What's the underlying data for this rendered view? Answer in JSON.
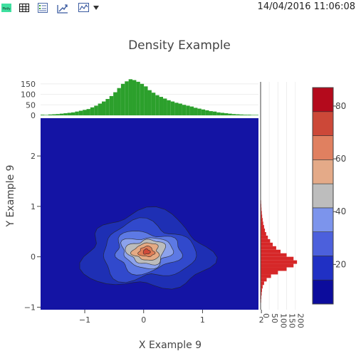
{
  "toolbar": {
    "logo_text": "Plotly",
    "icons": [
      "logo-icon",
      "table-icon",
      "list-icon",
      "export-icon",
      "chart-icon",
      "dropdown-arrow-icon"
    ],
    "timestamp": "14/04/2016 11:06:08"
  },
  "chart_data": {
    "type": "heatmap",
    "title": "Density Example",
    "xlabel": "X Example 9",
    "ylabel": "Y Example 9",
    "xlim": [
      -1.75,
      1.95
    ],
    "ylim": [
      -1.05,
      2.75
    ],
    "x_ticks": [
      "−1",
      "0",
      "1",
      "2"
    ],
    "y_ticks": [
      "−1",
      "0",
      "1",
      "2"
    ],
    "contour": {
      "center": [
        0.05,
        0.1
      ],
      "levels": [
        0,
        10,
        20,
        30,
        40,
        50,
        60,
        70,
        80
      ],
      "colors": [
        "#1414a4",
        "#1e2fb4",
        "#3149cc",
        "#5d79e4",
        "#8ca2ec",
        "#bcbcbc",
        "#e4aa84",
        "#e07e58",
        "#d04a3a",
        "#b40c1c"
      ]
    },
    "colorbar": {
      "ticks": [
        "20",
        "40",
        "60",
        "80"
      ],
      "tick_values": [
        20,
        40,
        60,
        80
      ],
      "range": [
        5,
        87
      ],
      "colors": [
        "#0c0c9c",
        "#2030c4",
        "#4c60dc",
        "#7c94ec",
        "#bdbdbd",
        "#e4aa88",
        "#e08060",
        "#cc4838",
        "#b40a1c"
      ]
    },
    "x_histogram": {
      "color": "#2ca02c",
      "yticks": [
        "0",
        "50",
        "100",
        "150"
      ],
      "ytick_values": [
        0,
        50,
        100,
        150
      ],
      "ymax": 190,
      "bin_start": -1.75,
      "bin_width": 0.065,
      "values": [
        3,
        2,
        4,
        5,
        6,
        8,
        10,
        12,
        14,
        18,
        22,
        26,
        30,
        38,
        46,
        56,
        66,
        78,
        92,
        110,
        130,
        150,
        162,
        172,
        168,
        160,
        150,
        138,
        120,
        108,
        96,
        88,
        80,
        72,
        66,
        60,
        56,
        50,
        46,
        42,
        36,
        32,
        28,
        24,
        20,
        18,
        14,
        12,
        10,
        8,
        6,
        5,
        4,
        3,
        3,
        2,
        2
      ]
    },
    "y_histogram": {
      "color": "#d62728",
      "xticks": [
        "0",
        "50",
        "100",
        "150",
        "200"
      ],
      "xtick_values": [
        0,
        50,
        100,
        150,
        200
      ],
      "xmax": 230,
      "bin_start": -1.05,
      "bin_width": 0.07,
      "values": [
        1,
        2,
        3,
        4,
        6,
        8,
        12,
        20,
        35,
        60,
        100,
        150,
        190,
        210,
        190,
        150,
        115,
        90,
        70,
        55,
        42,
        32,
        25,
        20,
        15,
        12,
        9,
        7,
        5,
        4,
        3,
        2,
        2,
        1,
        1,
        1,
        0,
        0,
        0,
        0,
        0,
        0,
        0,
        0,
        0,
        0,
        0,
        0,
        0,
        0,
        0,
        0,
        0,
        0
      ]
    }
  }
}
